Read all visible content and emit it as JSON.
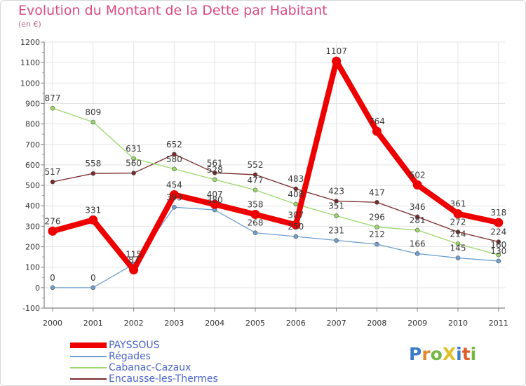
{
  "title": "Evolution du Montant de la Dette par Habitant",
  "unit": "(en €)",
  "logo": {
    "text": "ProXiti",
    "colors": [
      "#3b7bc8",
      "#e08a2b",
      "#74b843",
      "#e0c02b",
      "#3b7bc8",
      "#e05a2b",
      "#74b843"
    ]
  },
  "chart_data": {
    "type": "line",
    "title": "Evolution du Montant de la Dette par Habitant",
    "ylabel": "(en €)",
    "categories": [
      "2000",
      "2001",
      "2002",
      "2003",
      "2004",
      "2005",
      "2006",
      "2007",
      "2008",
      "2009",
      "2010",
      "2011"
    ],
    "yticks": [
      "-100",
      "0",
      "100",
      "200",
      "300",
      "400",
      "500",
      "600",
      "700",
      "800",
      "900",
      "1000",
      "1100",
      "1200"
    ],
    "ylim": [
      -100,
      1200
    ],
    "grid": true,
    "legend_position": "bottom-left",
    "series": [
      {
        "name": "Encausse-les-Thermes",
        "color": "#7a2a2a",
        "values": [
          517,
          558,
          560,
          652,
          561,
          552,
          483,
          423,
          417,
          346,
          272,
          224
        ],
        "labels": [
          "517",
          "558",
          "560",
          "652",
          "561",
          "552",
          "483",
          "423",
          "417",
          "346",
          "272",
          "224"
        ]
      },
      {
        "name": "Cabanac-Cazaux",
        "color": "#9ad86a",
        "values": [
          877,
          809,
          631,
          580,
          528,
          477,
          408,
          351,
          296,
          281,
          214,
          160
        ],
        "labels": [
          "877",
          "809",
          "631",
          "580",
          "528",
          "477",
          "408",
          "351",
          "296",
          "281",
          "214",
          "160"
        ]
      },
      {
        "name": "Régades",
        "color": "#6f9fcf",
        "values": [
          0,
          0,
          115,
          393,
          380,
          268,
          250,
          231,
          212,
          166,
          145,
          130
        ],
        "labels": [
          "0",
          "0",
          "115",
          "393",
          "380",
          "268",
          "250",
          "231",
          "212",
          "166",
          "145",
          "130"
        ]
      },
      {
        "name": "PAYSSOUS",
        "color": "#ee0000",
        "values": [
          276,
          331,
          87,
          454,
          407,
          358,
          307,
          1107,
          764,
          502,
          361,
          318
        ],
        "labels": [
          "276",
          "331",
          "87",
          "454",
          "407",
          "358",
          "307",
          "1107",
          "764",
          "502",
          "361",
          "318"
        ]
      }
    ]
  }
}
